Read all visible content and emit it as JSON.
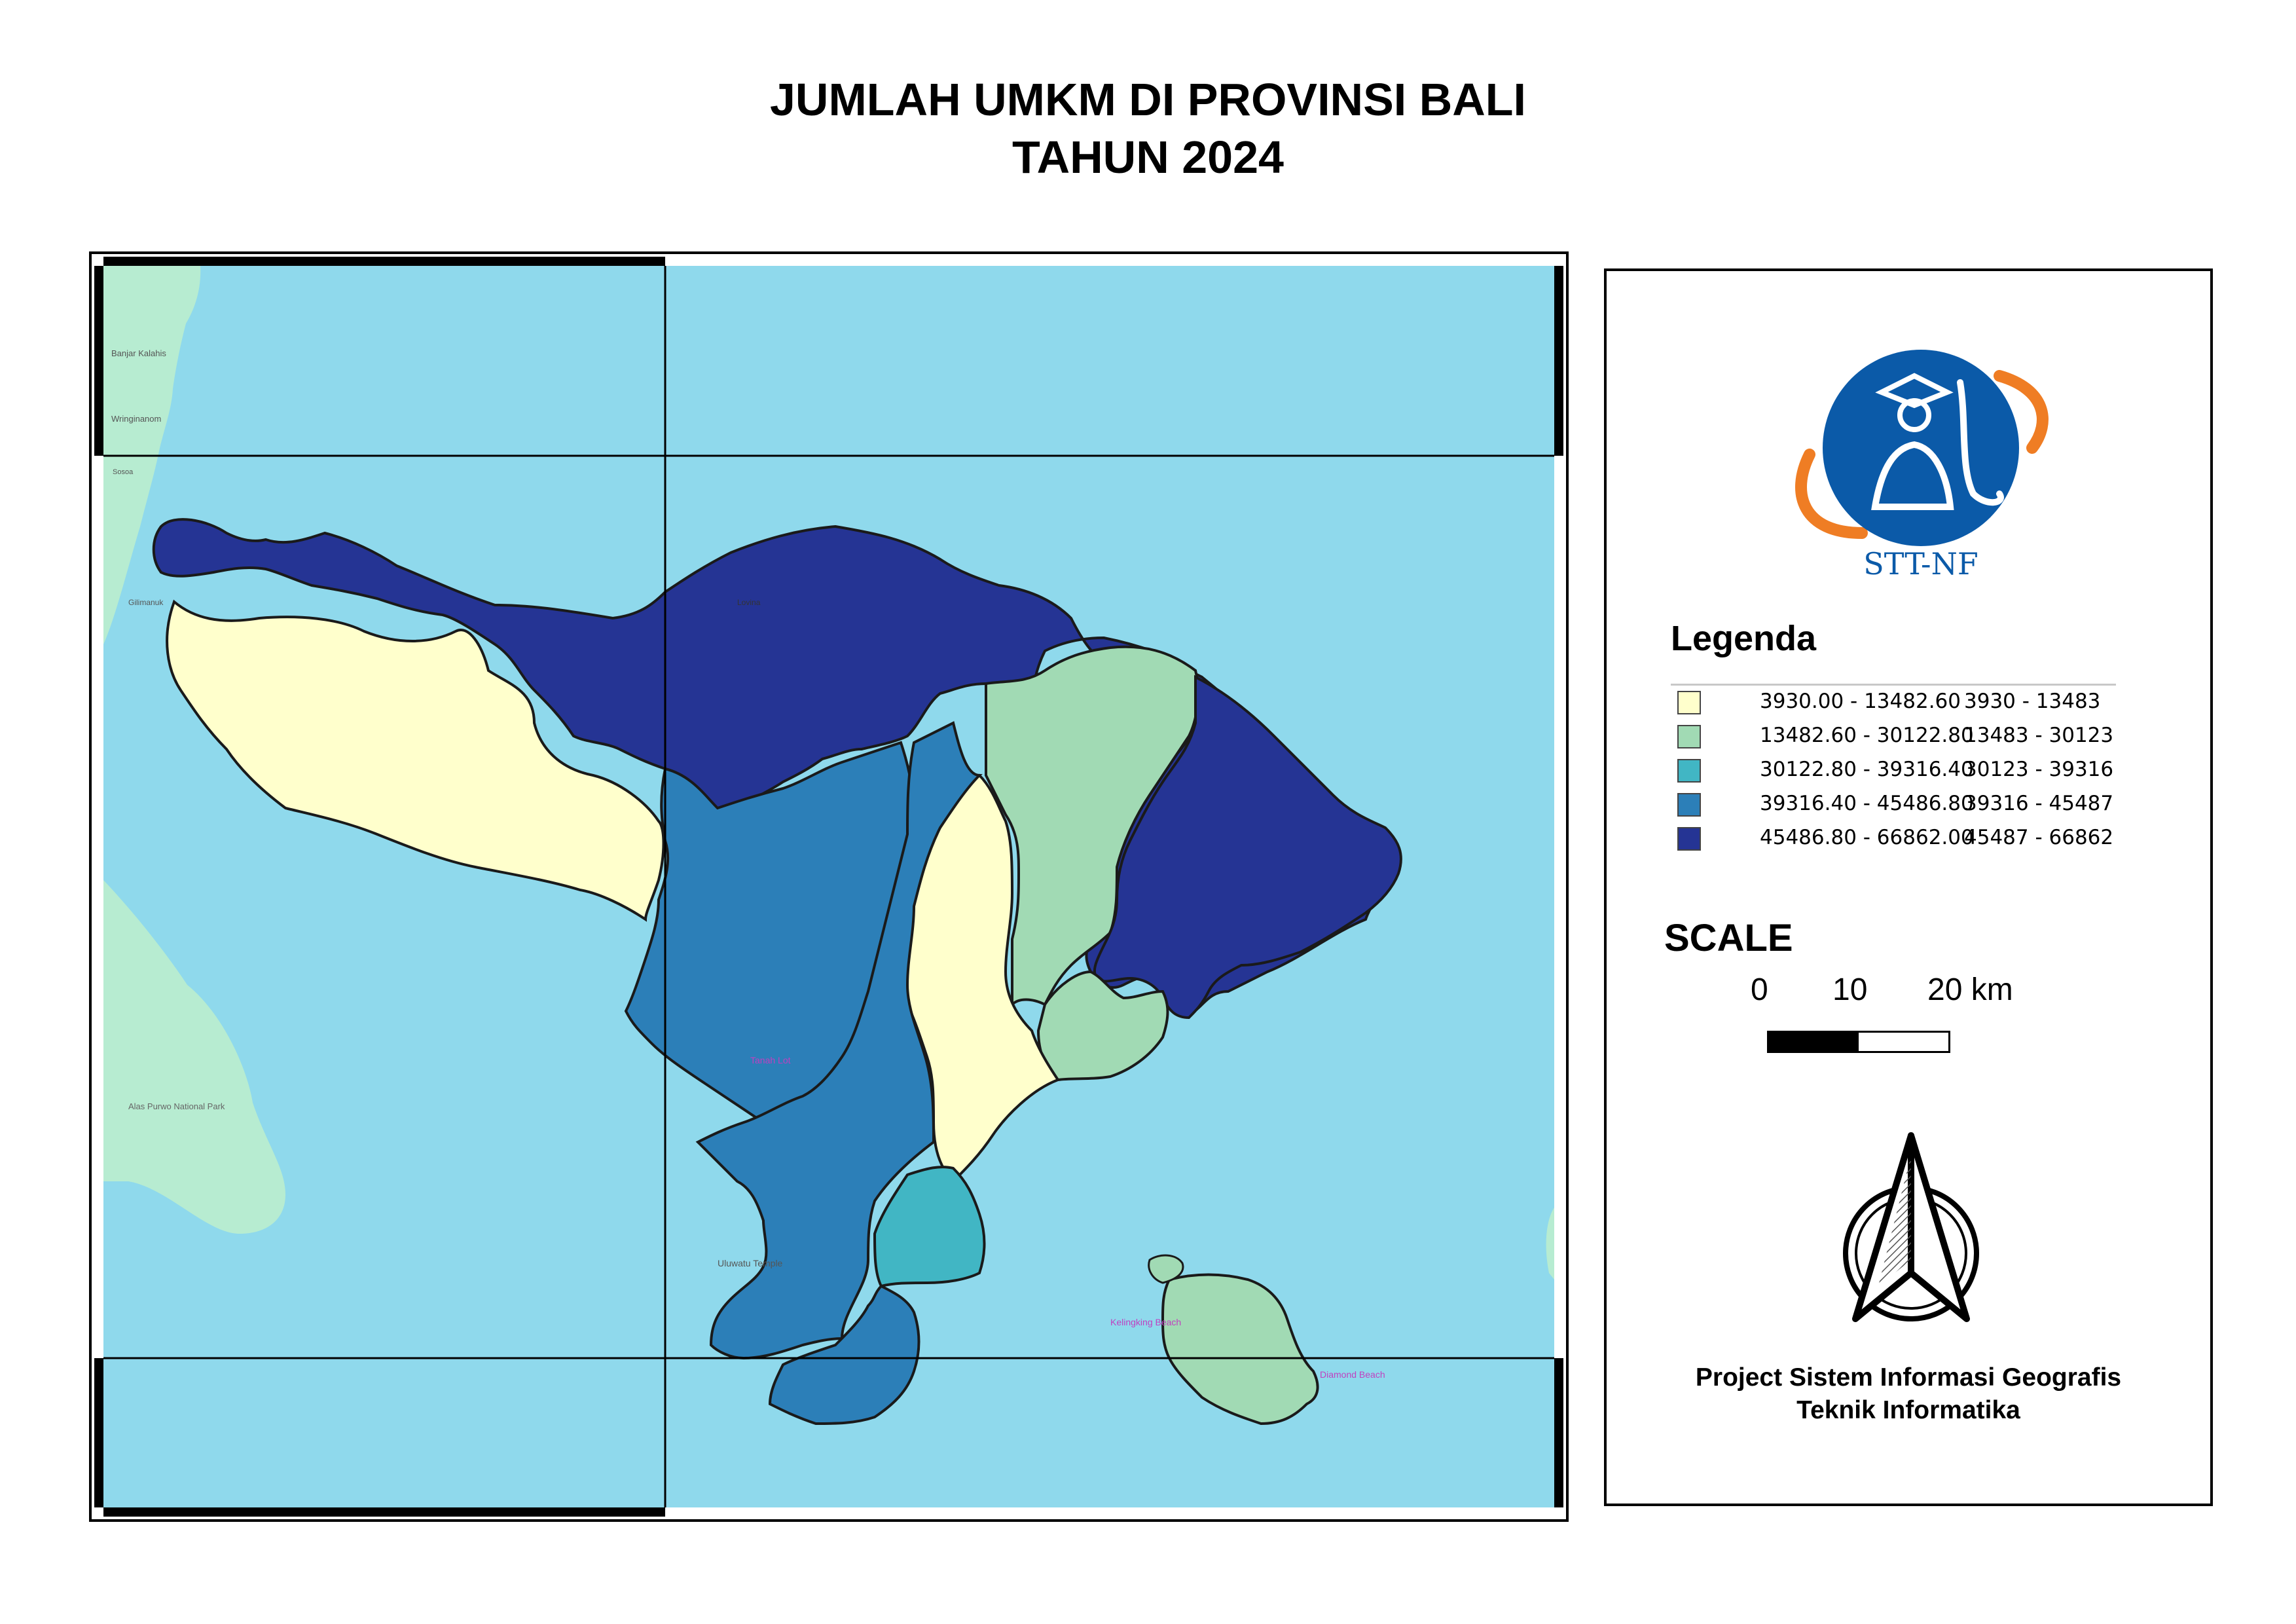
{
  "title": {
    "line1": "JUMLAH UMKM DI PROVINSI BALI",
    "line2": "TAHUN 2024"
  },
  "colors": {
    "sea": "#8fd9ec",
    "other_land": "#b7ecd1",
    "class1": "#ffffcc",
    "class2": "#a1dab4",
    "class3": "#41b6c4",
    "class4": "#2c7fb8",
    "class5": "#253494",
    "logo_blue": "#0b5aa8",
    "logo_orange": "#ef7d24"
  },
  "map": {
    "place_labels": [
      "Banjar Kalahis",
      "Wringinanom",
      "Sosoa",
      "Gilimanuk",
      "Alas Purwo National Park",
      "Tanah Lot",
      "Uluwatu Temple",
      "Kelingking Beach",
      "Diamond Beach",
      "Lovina"
    ]
  },
  "legend": {
    "logo_text": "STT-NF",
    "title": "Legenda",
    "classes": [
      {
        "range": "3930.00 - 13482.60",
        "label": "3930 - 13483",
        "color": "#ffffcc"
      },
      {
        "range": "13482.60 - 30122.80",
        "label": "13483 - 30123",
        "color": "#a1dab4"
      },
      {
        "range": "30122.80 - 39316.40",
        "label": "30123 - 39316",
        "color": "#41b6c4"
      },
      {
        "range": "39316.40 - 45486.80",
        "label": "39316 - 45487",
        "color": "#2c7fb8"
      },
      {
        "range": "45486.80 - 66862.00",
        "label": "45487 - 66862",
        "color": "#253494"
      }
    ],
    "scale_title": "SCALE",
    "scale_ticks": [
      "0",
      "10",
      "20 km"
    ],
    "north_arrow": "north-arrow-icon",
    "credits_line1": "Project Sistem Informasi Geografis",
    "credits_line2": "Teknik Informatika"
  }
}
